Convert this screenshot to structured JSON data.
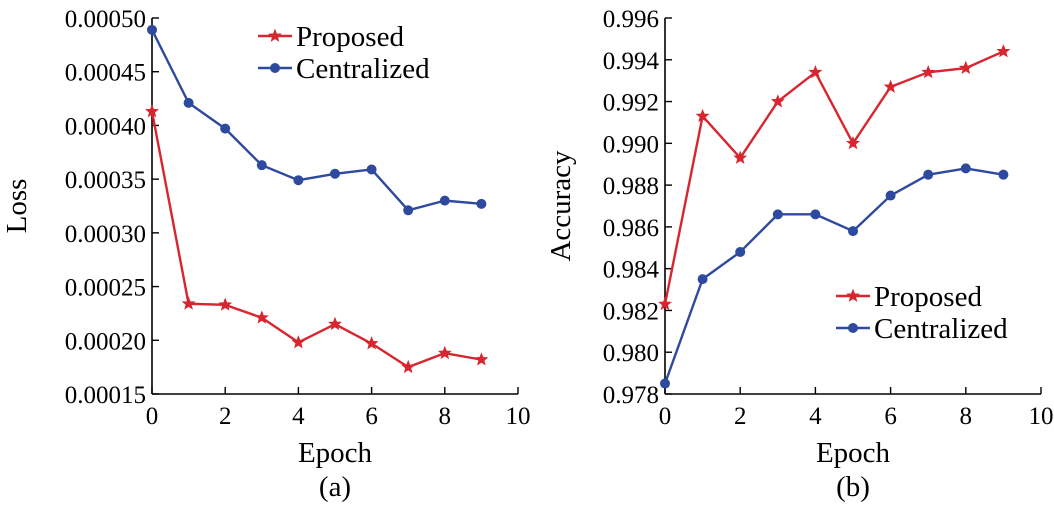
{
  "chart_data": [
    {
      "type": "line",
      "caption": "(a)",
      "xlabel": "Epoch",
      "ylabel": "Loss",
      "xlim": [
        0,
        10
      ],
      "ylim": [
        0.00015,
        0.0005
      ],
      "xticks": [
        "0",
        "2",
        "4",
        "6",
        "8",
        "10"
      ],
      "yticks": [
        "0.00015",
        "0.00020",
        "0.00025",
        "0.00030",
        "0.00035",
        "0.00040",
        "0.00045",
        "0.00050"
      ],
      "legend_position": "top-right",
      "grid": false,
      "series": [
        {
          "name": "Proposed",
          "color": "#d7262f",
          "marker": "star",
          "x": [
            0,
            1,
            2,
            3,
            4,
            5,
            6,
            7,
            8,
            9
          ],
          "y": [
            0.000413,
            0.000234,
            0.000233,
            0.000221,
            0.000198,
            0.000215,
            0.000197,
            0.000175,
            0.000188,
            0.000182
          ]
        },
        {
          "name": "Centralized",
          "color": "#2e4a9e",
          "marker": "circle",
          "x": [
            0,
            1,
            2,
            3,
            4,
            5,
            6,
            7,
            8,
            9
          ],
          "y": [
            0.000489,
            0.000421,
            0.000397,
            0.000363,
            0.000349,
            0.000355,
            0.000359,
            0.000321,
            0.00033,
            0.000327
          ]
        }
      ]
    },
    {
      "type": "line",
      "caption": "(b)",
      "xlabel": "Epoch",
      "ylabel": "Accuracy",
      "xlim": [
        0,
        10
      ],
      "ylim": [
        0.978,
        0.996
      ],
      "xticks": [
        "0",
        "2",
        "4",
        "6",
        "8",
        "10"
      ],
      "yticks": [
        "0.978",
        "0.980",
        "0.982",
        "0.984",
        "0.986",
        "0.988",
        "0.990",
        "0.992",
        "0.994",
        "0.996"
      ],
      "legend_position": "bottom-right",
      "grid": false,
      "series": [
        {
          "name": "Proposed",
          "color": "#d7262f",
          "marker": "star",
          "x": [
            0,
            1,
            2,
            3,
            4,
            5,
            6,
            7,
            8,
            9
          ],
          "y": [
            0.9823,
            0.9913,
            0.9893,
            0.992,
            0.9934,
            0.99,
            0.9927,
            0.9934,
            0.9936,
            0.9944
          ]
        },
        {
          "name": "Centralized",
          "color": "#2e4a9e",
          "marker": "circle",
          "x": [
            0,
            1,
            2,
            3,
            4,
            5,
            6,
            7,
            8,
            9
          ],
          "y": [
            0.9785,
            0.9835,
            0.9848,
            0.9866,
            0.9866,
            0.9858,
            0.9875,
            0.9885,
            0.9888,
            0.9885
          ]
        }
      ]
    }
  ]
}
